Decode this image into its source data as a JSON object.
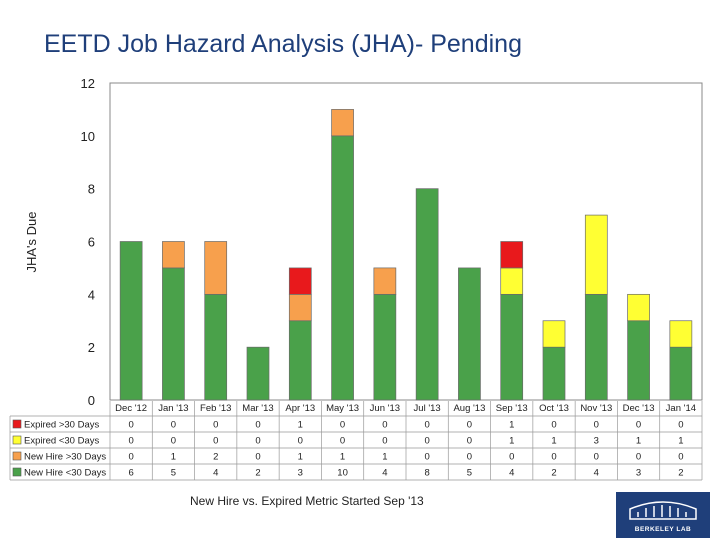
{
  "page": {
    "title": "EETD Job Hazard Analysis (JHA)- Pending"
  },
  "note": "New Hire vs. Expired Metric Started Sep '13",
  "logo": {
    "text": "BERKELEY LAB"
  },
  "chart_data": {
    "type": "bar",
    "stacked": true,
    "title": "",
    "ylabel": "JHA's Due",
    "xlabel": "",
    "ylim": [
      0,
      12
    ],
    "yticks": [
      0,
      2,
      4,
      6,
      8,
      10,
      12
    ],
    "grid": false,
    "legend": "data table rows below chart",
    "categories": [
      "Dec '12",
      "Jan '13",
      "Feb '13",
      "Mar '13",
      "Apr '13",
      "May '13",
      "Jun '13",
      "Jul '13",
      "Aug '13",
      "Sep '13",
      "Oct '13",
      "Nov '13",
      "Dec '13",
      "Jan '14"
    ],
    "series": [
      {
        "name": "New Hire <30 Days",
        "color": "#4aa14a",
        "values": [
          6,
          5,
          4,
          2,
          3,
          10,
          4,
          8,
          5,
          4,
          2,
          4,
          3,
          2
        ]
      },
      {
        "name": "New Hire >30 Days",
        "color": "#f7a04d",
        "values": [
          0,
          1,
          2,
          0,
          1,
          1,
          1,
          0,
          0,
          0,
          0,
          0,
          0,
          0
        ]
      },
      {
        "name": "Expired <30 Days",
        "color": "#ffff33",
        "values": [
          0,
          0,
          0,
          0,
          0,
          0,
          0,
          0,
          0,
          1,
          1,
          3,
          1,
          1
        ]
      },
      {
        "name": "Expired >30 Days",
        "color": "#e8191c",
        "values": [
          0,
          0,
          0,
          0,
          1,
          0,
          0,
          0,
          0,
          1,
          0,
          0,
          0,
          0
        ]
      }
    ],
    "table_rows_order": [
      "Expired >30 Days",
      "Expired <30 Days",
      "New Hire >30 Days",
      "New Hire <30 Days"
    ]
  }
}
